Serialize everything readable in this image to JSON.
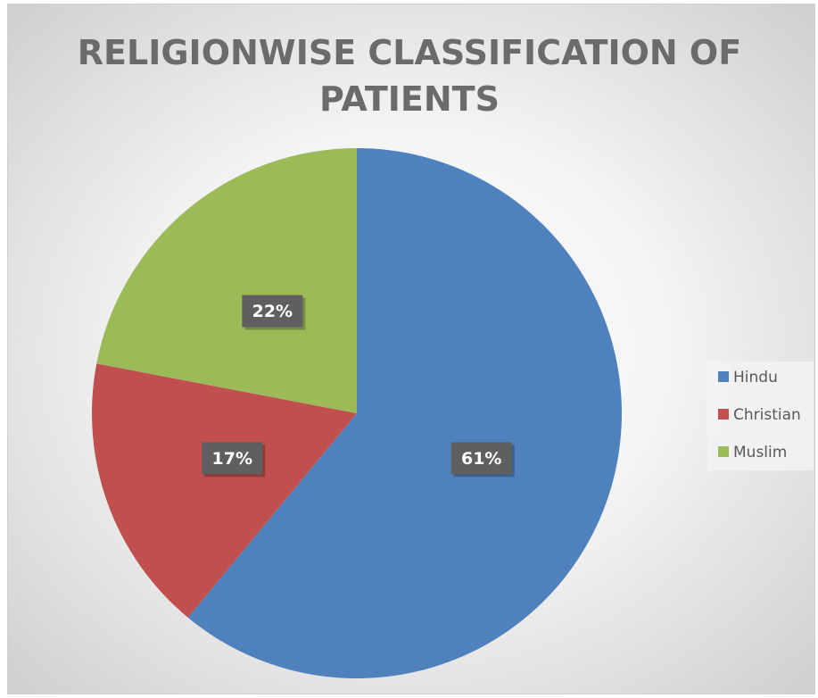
{
  "chart_data": {
    "type": "pie",
    "title": "RELIGIONWISE CLASSIFICATION OF PATIENTS",
    "categories": [
      "Hindu",
      "Christian",
      "Muslim"
    ],
    "values": [
      61,
      17,
      22
    ],
    "value_labels": [
      "61%",
      "17%",
      "22%"
    ],
    "colors": [
      "#4f81bd",
      "#c0504d",
      "#9bbb59"
    ],
    "legend": "right"
  }
}
